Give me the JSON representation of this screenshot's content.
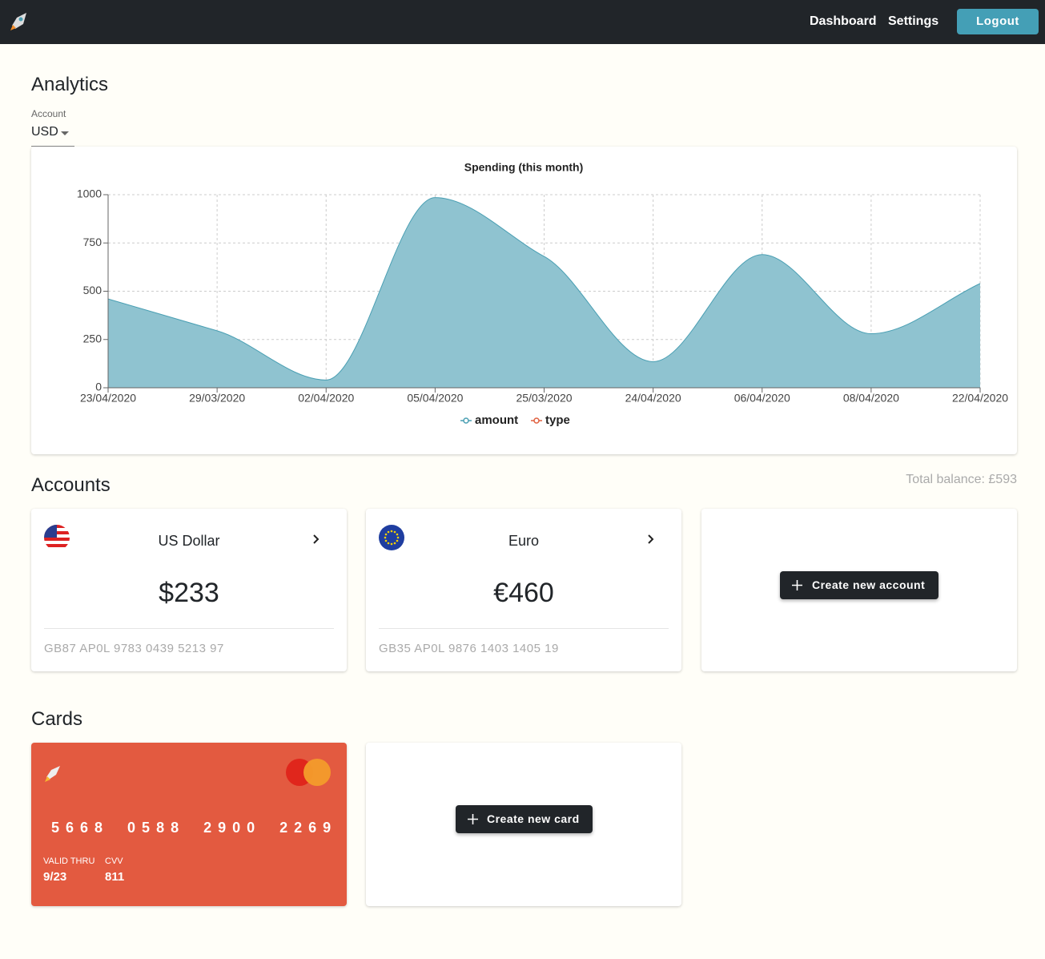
{
  "nav": {
    "links": [
      "Dashboard",
      "Settings"
    ],
    "logout": "Logout"
  },
  "analytics": {
    "title": "Analytics",
    "account_label": "Account",
    "account_value": "USD"
  },
  "chart_data": {
    "type": "area",
    "title": "Spending (this month)",
    "categories": [
      "23/04/2020",
      "29/03/2020",
      "02/04/2020",
      "05/04/2020",
      "25/03/2020",
      "24/04/2020",
      "06/04/2020",
      "08/04/2020",
      "22/04/2020"
    ],
    "series": [
      {
        "name": "amount",
        "color": "#4a9fb3",
        "fill": "#8fc3d0",
        "values": [
          460,
          295,
          40,
          985,
          680,
          135,
          690,
          280,
          540
        ]
      },
      {
        "name": "type",
        "color": "#e0603f",
        "values": [
          null,
          null,
          null,
          null,
          null,
          null,
          null,
          null,
          null
        ]
      }
    ],
    "ylim": [
      0,
      1000
    ],
    "yticks": [
      0,
      250,
      500,
      750,
      1000
    ],
    "grid": true,
    "legend": "bottom"
  },
  "accounts": {
    "title": "Accounts",
    "total": "Total balance: £593",
    "items": [
      {
        "name": "US Dollar",
        "balance": "$233",
        "iban": "GB87 AP0L 9783 0439 5213 97"
      },
      {
        "name": "Euro",
        "balance": "€460",
        "iban": "GB35 AP0L 9876 1403 1405 19"
      }
    ],
    "create": "Create new account"
  },
  "cards": {
    "title": "Cards",
    "items": [
      {
        "number": "5668 0588 2900 2269",
        "valid_label": "VALID THRU",
        "valid": "9/23",
        "cvv_label": "CVV",
        "cvv": "811"
      }
    ],
    "create": "Create new card"
  }
}
